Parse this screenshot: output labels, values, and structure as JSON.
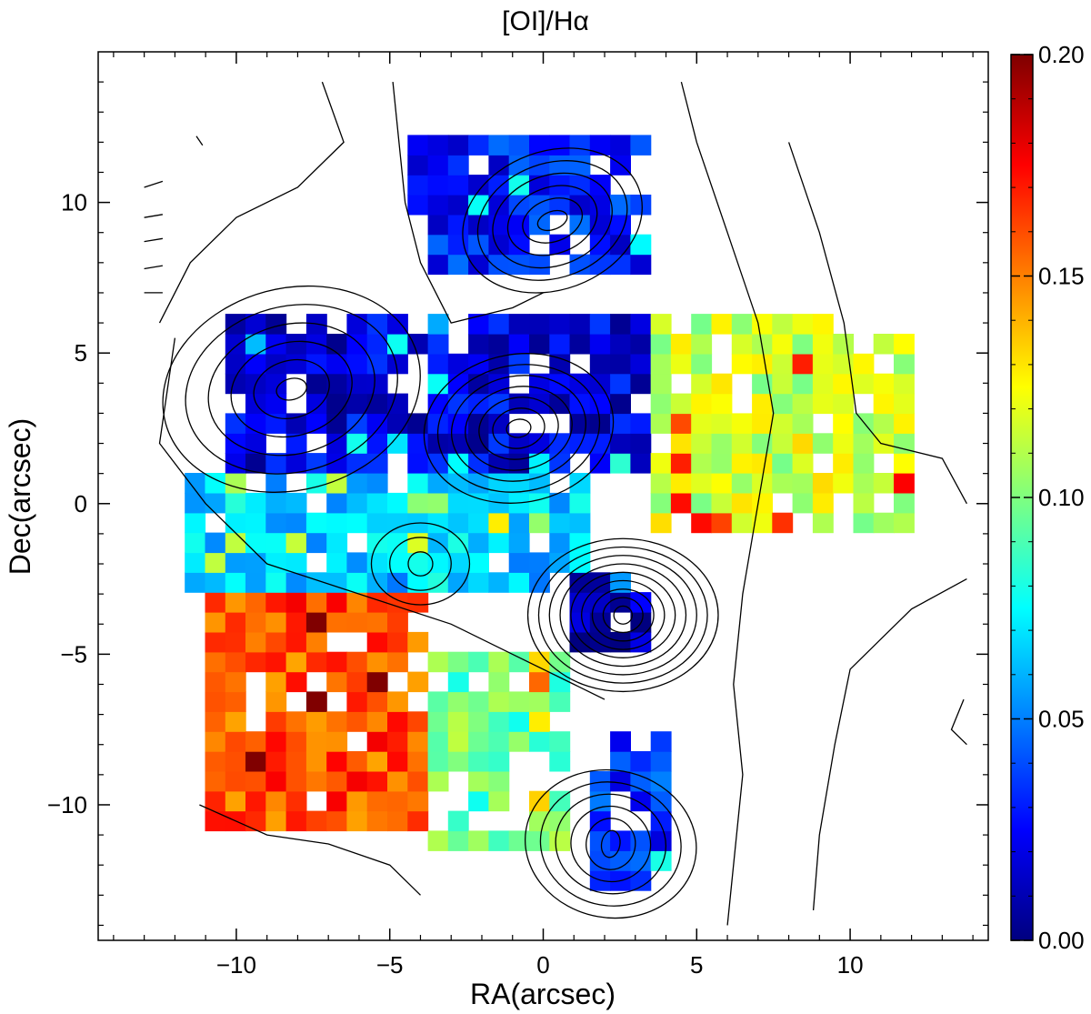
{
  "chart_data": {
    "type": "heatmap",
    "title": "[OI]/Hα",
    "xlabel": "RA(arcsec)",
    "ylabel": "Dec(arcsec)",
    "xlim": [
      -14.5,
      14.5
    ],
    "ylim": [
      -14.5,
      15
    ],
    "x_ticks": [
      -10,
      -5,
      0,
      5,
      10
    ],
    "x_tick_labels": [
      "−10",
      "−5",
      "0",
      "5",
      "10"
    ],
    "y_ticks": [
      -10,
      -5,
      0,
      5,
      10
    ],
    "y_tick_labels": [
      "−10",
      "−5",
      "0",
      "5",
      "10"
    ],
    "colorbar": {
      "range": [
        0,
        0.2
      ],
      "ticks": [
        0,
        0.05,
        0.1,
        0.15,
        0.2
      ],
      "tick_labels": [
        "0.00",
        "0.05",
        "0.10",
        "0.15",
        "0.20"
      ],
      "colormap": "jet"
    },
    "pixel_size_arcsec": 0.66,
    "regions": [
      {
        "name": "northern blue knot",
        "x": [
          -5,
          3.5
        ],
        "y": [
          7,
          12.2
        ],
        "value": 0.03
      },
      {
        "name": "central blue band",
        "x": [
          -11,
          3
        ],
        "y": [
          1,
          6
        ],
        "value": 0.02
      },
      {
        "name": "southern nucleus",
        "x": [
          0.5,
          3
        ],
        "y": [
          -5,
          -2.5
        ],
        "value": 0.01
      },
      {
        "name": "southern tail knot",
        "x": [
          1,
          4
        ],
        "y": [
          -13,
          -8
        ],
        "value": 0.035
      },
      {
        "name": "west cyan band",
        "x": [
          -12,
          1
        ],
        "y": [
          -3,
          0.5
        ],
        "value": 0.065
      },
      {
        "name": "eastern green-yellow plume",
        "x": [
          3.5,
          11.5
        ],
        "y": [
          -1,
          6
        ],
        "value": 0.115
      },
      {
        "name": "south-west orange-red lobe",
        "x": [
          -11.5,
          -4
        ],
        "y": [
          -11,
          -3
        ],
        "value": 0.16
      },
      {
        "name": "south-central green lobe",
        "x": [
          -4,
          0.5
        ],
        "y": [
          -12,
          -5
        ],
        "value": 0.095
      }
    ],
    "contours": "isophotes of continuum emission (black lines)"
  }
}
